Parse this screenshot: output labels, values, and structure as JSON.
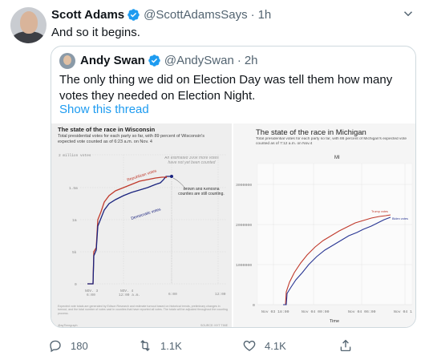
{
  "tweet": {
    "author_name": "Scott Adams",
    "author_handle": "@ScottAdamsSays",
    "time": "1h",
    "text": "And so it begins."
  },
  "quoted": {
    "author_name": "Andy Swan",
    "author_handle": "@AndySwan",
    "time": "2h",
    "text": "The only thing we did on Election Day was tell them how many votes they needed on Election Night.",
    "show_thread": "Show this thread"
  },
  "wisconsin_chart": {
    "title": "The state of the race in Wisconsin",
    "subtitle": "Total presidential votes for each party so far, with 89 percent of Wisconsin's expected vote counted as of 6:23 a.m. on Nov. 4",
    "yticks": [
      "2 million votes",
      "1.5m",
      "1m",
      "5k",
      "0"
    ],
    "xticks": [
      "NOV. 3\n6:00",
      "NOV. 4\n12:00 a.m.",
      "6:00",
      "12:00"
    ],
    "annot_top": "An estimated 300k more votes\nhave not yet been counted",
    "annot_right": "Brown and Kenosha\ncounties are still counting.",
    "rep_label": "Republican votes",
    "dem_label": "Democratic votes",
    "footnote": "Expected vote totals are generated by Edison Research and estimate turnout based on historical trends, preliminary changes in turnout, and the total number of votes cast in counties that have reported all votes. The totals will be adjusted throughout the counting process.",
    "source_left": "@ayTimegraph",
    "source_right": "SOURCE: NYT TIME"
  },
  "michigan_chart": {
    "title": "The state of the race in Michigan",
    "subtitle": "Total presidential votes for each party so far, with 86 percent of Michigan's expected vote counted as of 7:12 a.m. on Nov.4",
    "panel_label": "MI",
    "yticks": [
      "3000000",
      "2000000",
      "1000000",
      "0"
    ],
    "xticks": [
      "Nov 03 18:00",
      "Nov 04 00:00",
      "Nov 04 06:00",
      "Nov 04 1"
    ],
    "xlabel": "Time",
    "trump_label": "Trump votes",
    "biden_label": "Biden votes"
  },
  "actions": {
    "replies": "180",
    "retweets": "1.1K",
    "likes": "4.1K"
  },
  "colors": {
    "republican": "#c0392b",
    "democratic": "#1a237e",
    "link": "#1d9bf0",
    "verified": "#1d9bf0"
  }
}
